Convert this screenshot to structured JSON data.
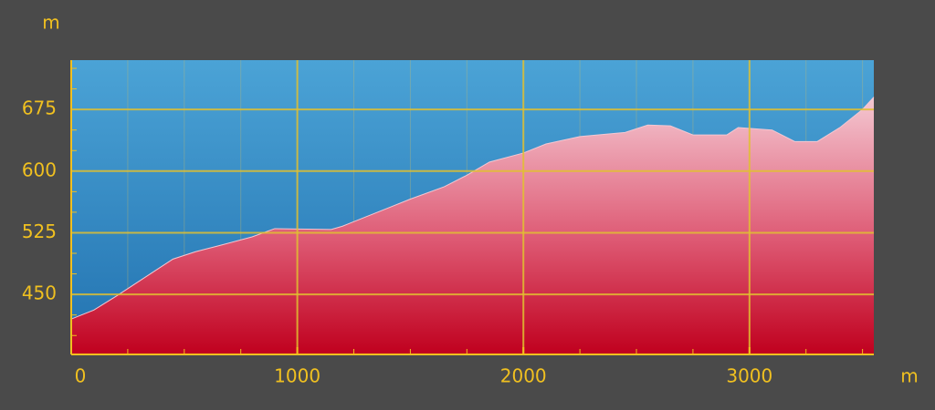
{
  "chart_data": {
    "type": "area",
    "x_label": "m",
    "y_label": "m",
    "x": [
      0,
      100,
      200,
      350,
      450,
      550,
      650,
      800,
      900,
      1150,
      1200,
      1300,
      1400,
      1500,
      1650,
      1750,
      1850,
      2000,
      2100,
      2250,
      2450,
      2550,
      2650,
      2750,
      2900,
      2950,
      3100,
      3200,
      3300,
      3400,
      3500,
      3550
    ],
    "values": [
      420,
      431,
      448,
      475,
      493,
      502,
      509,
      520,
      530,
      529,
      533,
      544,
      555,
      566,
      581,
      595,
      611,
      622,
      633,
      642,
      647,
      656,
      655,
      644,
      644,
      653,
      650,
      636,
      636,
      653,
      675,
      690
    ],
    "color": "#c8102e",
    "xlim": [
      0,
      3550
    ],
    "ylim": [
      377,
      735
    ],
    "xticks": [
      0,
      1000,
      2000,
      3000
    ],
    "yticks": [
      450,
      525,
      600,
      675
    ],
    "xticks_minor": [
      250,
      500,
      750,
      1250,
      1500,
      1750,
      2250,
      2500,
      2750,
      3250,
      3500
    ],
    "yticks_minor": [
      400,
      425,
      475,
      500,
      550,
      575,
      625,
      650,
      700,
      725
    ],
    "grid": true
  }
}
